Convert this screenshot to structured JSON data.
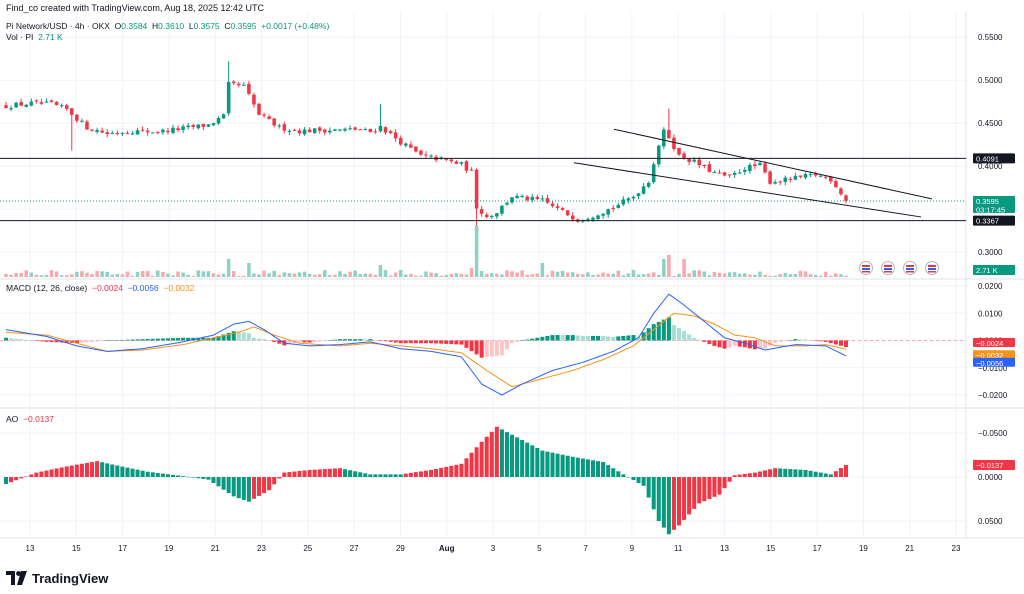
{
  "caption": "Find_co created with TradingView.com, Aug 18, 2025 12:42 UTC",
  "symbol": {
    "name": "Pi Network/USD · 4h · OKX",
    "o_label": "O",
    "o": "0.3584",
    "h_label": "H",
    "h": "0.3610",
    "l_label": "L",
    "l": "0.3575",
    "c_label": "C",
    "c": "0.3595",
    "change": "+0.0017 (+0.48%)"
  },
  "volume": {
    "label": "Vol · PI",
    "value": "2.71 K"
  },
  "macd": {
    "label": "MACD (12, 26, close)",
    "hist": "−0.0024",
    "macd": "−0.0056",
    "signal": "−0.0032"
  },
  "ao": {
    "label": "AO",
    "value": "−0.0137"
  },
  "brand": "TradingView",
  "colors": {
    "up": "#089981",
    "down": "#f23645",
    "macd": "#2962ff",
    "signal": "#f7931a"
  },
  "chart_data": [
    {
      "type": "candlestick",
      "title": "Pi Network/USD · 4h · OKX",
      "ylim": [
        0.27,
        0.57
      ],
      "y_ticks": [
        "0.5500",
        "0.5000",
        "0.4500",
        "0.4000",
        "0.3500",
        "0.3000"
      ],
      "x_ticks": [
        "13",
        "15",
        "17",
        "19",
        "21",
        "23",
        "25",
        "27",
        "29",
        "Aug",
        "3",
        "5",
        "7",
        "9",
        "11",
        "13",
        "15",
        "17",
        "19",
        "21",
        "23"
      ],
      "price_path": [
        [
          0,
          0.47
        ],
        [
          5,
          0.473
        ],
        [
          9,
          0.472
        ],
        [
          12,
          0.466
        ],
        [
          16,
          0.445
        ],
        [
          20,
          0.438
        ],
        [
          25,
          0.441
        ],
        [
          30,
          0.44
        ],
        [
          35,
          0.444
        ],
        [
          40,
          0.448
        ],
        [
          43,
          0.458
        ],
        [
          44,
          0.495
        ],
        [
          47,
          0.493
        ],
        [
          50,
          0.46
        ],
        [
          54,
          0.445
        ],
        [
          58,
          0.441
        ],
        [
          62,
          0.442
        ],
        [
          66,
          0.442
        ],
        [
          69,
          0.443
        ],
        [
          72,
          0.44
        ],
        [
          74,
          0.446
        ],
        [
          78,
          0.428
        ],
        [
          82,
          0.412
        ],
        [
          86,
          0.408
        ],
        [
          90,
          0.402
        ],
        [
          92,
          0.393
        ],
        [
          93,
          0.353
        ],
        [
          95,
          0.341
        ],
        [
          97,
          0.347
        ],
        [
          100,
          0.365
        ],
        [
          103,
          0.362
        ],
        [
          106,
          0.36
        ],
        [
          110,
          0.347
        ],
        [
          113,
          0.338
        ],
        [
          116,
          0.343
        ],
        [
          120,
          0.352
        ],
        [
          124,
          0.365
        ],
        [
          127,
          0.383
        ],
        [
          129,
          0.425
        ],
        [
          130,
          0.44
        ],
        [
          131,
          0.434
        ],
        [
          133,
          0.412
        ],
        [
          136,
          0.405
        ],
        [
          140,
          0.392
        ],
        [
          143,
          0.387
        ],
        [
          146,
          0.398
        ],
        [
          149,
          0.401
        ],
        [
          151,
          0.382
        ],
        [
          154,
          0.384
        ],
        [
          157,
          0.387
        ],
        [
          160,
          0.39
        ],
        [
          163,
          0.385
        ],
        [
          165,
          0.369
        ],
        [
          166,
          0.36
        ]
      ],
      "wicks": [
        {
          "i": 44,
          "h": 0.522
        },
        {
          "i": 93,
          "l": 0.295
        },
        {
          "i": 131,
          "h": 0.467
        },
        {
          "i": 13,
          "l": 0.418
        },
        {
          "i": 74,
          "h": 0.472
        }
      ],
      "last_price": "0.3595",
      "countdown": "03:17:45",
      "horizontal_levels": [
        "0.4091",
        "0.3367"
      ],
      "trendlines": [
        {
          "from": [
            "Aug 8",
            0.443
          ],
          "to": [
            "Aug 22",
            0.362
          ]
        },
        {
          "from": [
            "Aug 7",
            0.404
          ],
          "to": [
            "Aug 22",
            0.341
          ]
        }
      ],
      "volume_last": "2.71 K"
    },
    {
      "type": "macd",
      "name": "MACD (12, 26, close)",
      "ylim": [
        -0.024,
        0.024
      ],
      "y_ticks": [
        "0.0200",
        "0.0100",
        "0.0000",
        "−0.0100",
        "−0.0200"
      ],
      "macd_path": [
        [
          0,
          0.004
        ],
        [
          8,
          0.0015
        ],
        [
          14,
          -0.002
        ],
        [
          20,
          -0.004
        ],
        [
          27,
          -0.003
        ],
        [
          35,
          -0.0005
        ],
        [
          41,
          0.002
        ],
        [
          45,
          0.006
        ],
        [
          48,
          0.007
        ],
        [
          51,
          0.004
        ],
        [
          55,
          -0.001
        ],
        [
          60,
          -0.002
        ],
        [
          66,
          -0.0015
        ],
        [
          72,
          -0.0005
        ],
        [
          78,
          -0.003
        ],
        [
          84,
          -0.004
        ],
        [
          90,
          -0.006
        ],
        [
          94,
          -0.016
        ],
        [
          98,
          -0.02
        ],
        [
          102,
          -0.016
        ],
        [
          108,
          -0.011
        ],
        [
          114,
          -0.008
        ],
        [
          120,
          -0.004
        ],
        [
          125,
          0.001
        ],
        [
          128,
          0.01
        ],
        [
          131,
          0.017
        ],
        [
          134,
          0.013
        ],
        [
          138,
          0.007
        ],
        [
          142,
          0.001
        ],
        [
          146,
          -0.001
        ],
        [
          150,
          -0.0035
        ],
        [
          156,
          -0.0015
        ],
        [
          162,
          -0.002
        ],
        [
          166,
          -0.0056
        ]
      ],
      "signal_path": [
        [
          0,
          0.003
        ],
        [
          8,
          0.002
        ],
        [
          14,
          -0.001
        ],
        [
          20,
          -0.004
        ],
        [
          27,
          -0.0035
        ],
        [
          35,
          -0.0015
        ],
        [
          41,
          0.001
        ],
        [
          46,
          0.003
        ],
        [
          49,
          0.005
        ],
        [
          53,
          0.002
        ],
        [
          58,
          -0.001
        ],
        [
          66,
          -0.002
        ],
        [
          72,
          -0.001
        ],
        [
          78,
          -0.002
        ],
        [
          84,
          -0.003
        ],
        [
          90,
          -0.0045
        ],
        [
          95,
          -0.011
        ],
        [
          100,
          -0.017
        ],
        [
          106,
          -0.014
        ],
        [
          112,
          -0.011
        ],
        [
          118,
          -0.007
        ],
        [
          124,
          -0.002
        ],
        [
          128,
          0.004
        ],
        [
          132,
          0.01
        ],
        [
          136,
          0.009
        ],
        [
          140,
          0.006
        ],
        [
          144,
          0.002
        ],
        [
          148,
          0.001
        ],
        [
          152,
          -0.002
        ],
        [
          158,
          -0.002
        ],
        [
          162,
          -0.0015
        ],
        [
          166,
          -0.0032
        ]
      ],
      "values": {
        "histogram": "−0.0024",
        "macd": "−0.0056",
        "signal": "−0.0032"
      }
    },
    {
      "type": "bar",
      "name": "AO",
      "ylim": [
        -0.065,
        0.065
      ],
      "y_ticks": [
        "0.0500",
        "0.0000",
        "−0.0500"
      ],
      "ao_path": [
        [
          0,
          0.008
        ],
        [
          6,
          -0.005
        ],
        [
          12,
          -0.012
        ],
        [
          18,
          -0.018
        ],
        [
          22,
          -0.013
        ],
        [
          28,
          -0.006
        ],
        [
          35,
          -0.001
        ],
        [
          40,
          0.003
        ],
        [
          45,
          0.022
        ],
        [
          48,
          0.028
        ],
        [
          52,
          0.015
        ],
        [
          55,
          -0.005
        ],
        [
          60,
          -0.008
        ],
        [
          66,
          -0.01
        ],
        [
          72,
          -0.003
        ],
        [
          78,
          -0.003
        ],
        [
          84,
          -0.008
        ],
        [
          90,
          -0.015
        ],
        [
          94,
          -0.04
        ],
        [
          97,
          -0.057
        ],
        [
          101,
          -0.045
        ],
        [
          106,
          -0.03
        ],
        [
          112,
          -0.023
        ],
        [
          118,
          -0.017
        ],
        [
          122,
          -0.003
        ],
        [
          126,
          0.01
        ],
        [
          129,
          0.05
        ],
        [
          131,
          0.065
        ],
        [
          133,
          0.055
        ],
        [
          137,
          0.03
        ],
        [
          141,
          0.02
        ],
        [
          144,
          -0.002
        ],
        [
          148,
          -0.005
        ],
        [
          152,
          -0.01
        ],
        [
          158,
          -0.008
        ],
        [
          163,
          -0.003
        ],
        [
          166,
          -0.0137
        ]
      ],
      "last_value": "−0.0137"
    }
  ]
}
